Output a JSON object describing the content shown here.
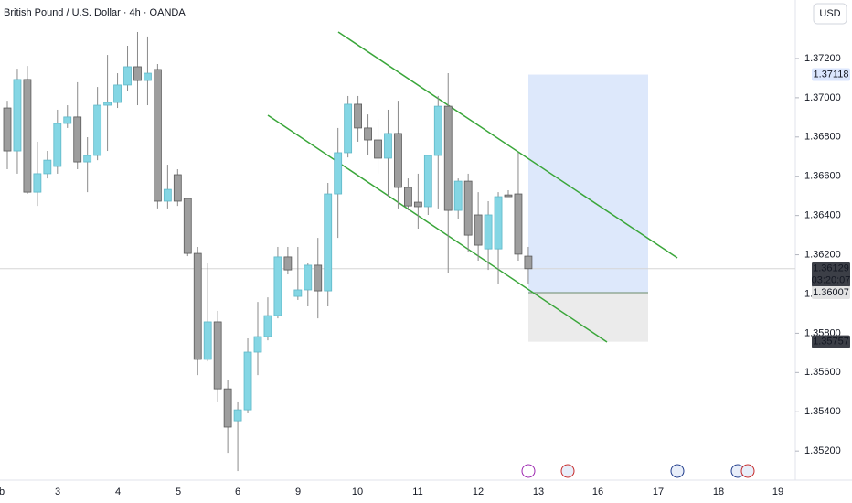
{
  "chart_data": {
    "type": "candlestick",
    "title": "British Pound / U.S. Dollar · 4h · OANDA",
    "currency": "USD",
    "up_color": "#84d6e4",
    "down_color": "#9e9e9e",
    "open": [
      1.36948,
      1.36729,
      1.37093,
      1.36519,
      1.36613,
      1.3665,
      1.36869,
      1.36902,
      1.36673,
      1.36706,
      1.36962,
      1.36976,
      1.37065,
      1.37158,
      1.37088,
      1.37144,
      1.36473,
      1.36608,
      1.36487,
      1.36207,
      1.35667,
      1.35858,
      1.35517,
      1.35354,
      1.3541,
      1.35704,
      1.35783,
      1.3589,
      1.36189,
      1.35988,
      1.36021,
      1.36147,
      1.36016,
      1.3651,
      1.3672,
      1.36967,
      1.36846,
      1.36785,
      1.36692,
      1.36818,
      1.36543,
      1.36468,
      1.36445,
      1.36706,
      1.36957,
      1.36426,
      1.36575,
      1.36403,
      1.3623,
      1.3623,
      1.36505,
      1.3651,
      1.36193
    ],
    "high": [
      1.36985,
      1.37148,
      1.37162,
      1.36776,
      1.36729,
      1.36939,
      1.36962,
      1.37079,
      1.36799,
      1.37055,
      1.37218,
      1.37125,
      1.37265,
      1.37335,
      1.37312,
      1.37172,
      1.36659,
      1.36636,
      1.36487,
      1.3624,
      1.36156,
      1.35914,
      1.35564,
      1.35448,
      1.35774,
      1.3596,
      1.35983,
      1.3624,
      1.3624,
      1.3624,
      1.36156,
      1.36286,
      1.36566,
      1.36846,
      1.37009,
      1.37009,
      1.36915,
      1.36892,
      1.36939,
      1.36985,
      1.36589,
      1.36613,
      1.36682,
      1.37009,
      1.37125,
      1.36589,
      1.36613,
      1.36519,
      1.36473,
      1.36519,
      1.36529,
      1.3672,
      1.3624
    ],
    "low": [
      1.36636,
      1.36613,
      1.3651,
      1.36449,
      1.36589,
      1.36613,
      1.36846,
      1.36636,
      1.36519,
      1.36682,
      1.36729,
      1.36948,
      1.37032,
      1.36962,
      1.36962,
      1.36436,
      1.36436,
      1.36449,
      1.36193,
      1.35587,
      1.35657,
      1.35448,
      1.35191,
      1.35098,
      1.35392,
      1.35587,
      1.35764,
      1.35876,
      1.361,
      1.3597,
      1.35937,
      1.35876,
      1.35937,
      1.36286,
      1.36696,
      1.36776,
      1.36706,
      1.36613,
      1.36496,
      1.36436,
      1.36426,
      1.36333,
      1.36403,
      1.36436,
      1.36109,
      1.3638,
      1.36216,
      1.3617,
      1.36123,
      1.36053,
      1.36496,
      1.3617,
      1.36053
    ],
    "close": [
      1.36729,
      1.37093,
      1.36519,
      1.36613,
      1.36682,
      1.36869,
      1.36902,
      1.36673,
      1.36706,
      1.36962,
      1.36976,
      1.37065,
      1.37158,
      1.37088,
      1.37125,
      1.36473,
      1.36533,
      1.36473,
      1.36207,
      1.35667,
      1.35858,
      1.35517,
      1.35322,
      1.3541,
      1.35704,
      1.35783,
      1.3589,
      1.36189,
      1.36123,
      1.36021,
      1.36147,
      1.36016,
      1.3651,
      1.3672,
      1.36967,
      1.36846,
      1.36785,
      1.36692,
      1.36818,
      1.36543,
      1.36449,
      1.36445,
      1.36706,
      1.36957,
      1.36426,
      1.36575,
      1.363,
      1.36249,
      1.36403,
      1.36496,
      1.36496,
      1.36203,
      1.36129
    ],
    "ylim": [
      1.35075,
      1.37498
    ],
    "yticks": [
      {
        "value": 1.352,
        "label": "1.35200"
      },
      {
        "value": 1.354,
        "label": "1.35400"
      },
      {
        "value": 1.356,
        "label": "1.35600"
      },
      {
        "value": 1.358,
        "label": "1.35800"
      },
      {
        "value": 1.36,
        "label": "1.36000"
      },
      {
        "value": 1.362,
        "label": "1.36200"
      },
      {
        "value": 1.364,
        "label": "1.36400"
      },
      {
        "value": 1.366,
        "label": "1.36600"
      },
      {
        "value": 1.368,
        "label": "1.36800"
      },
      {
        "value": 1.37,
        "label": "1.37000"
      },
      {
        "value": 1.372,
        "label": "1.37200"
      }
    ],
    "x_tick_labels": [
      "b",
      "3",
      "4",
      "5",
      "6",
      "9",
      "10",
      "11",
      "12",
      "13",
      "16",
      "17",
      "18",
      "19"
    ],
    "last_price": 1.36129,
    "countdown": "03:20:07",
    "position": {
      "target": 1.37118,
      "entry": 1.36007,
      "stop": 1.35757
    }
  }
}
